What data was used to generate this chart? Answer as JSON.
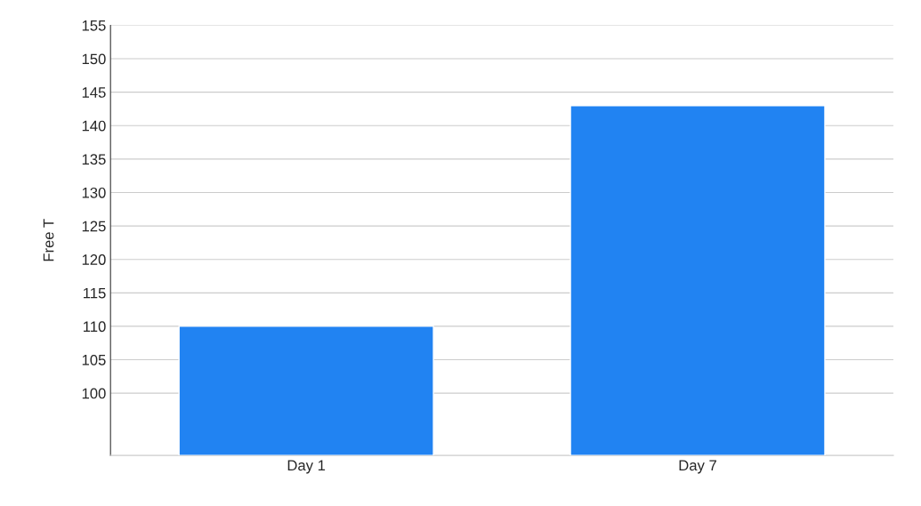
{
  "chart_data": {
    "type": "bar",
    "ylabel": "Free T",
    "categories": [
      "Day 1",
      "Day 7"
    ],
    "values": [
      110,
      143
    ],
    "color": "#2183f2",
    "ylim": [
      90.7,
      155
    ],
    "yticks": [
      100,
      105,
      110,
      115,
      120,
      125,
      130,
      135,
      140,
      145,
      150,
      155
    ],
    "grid": "y"
  }
}
